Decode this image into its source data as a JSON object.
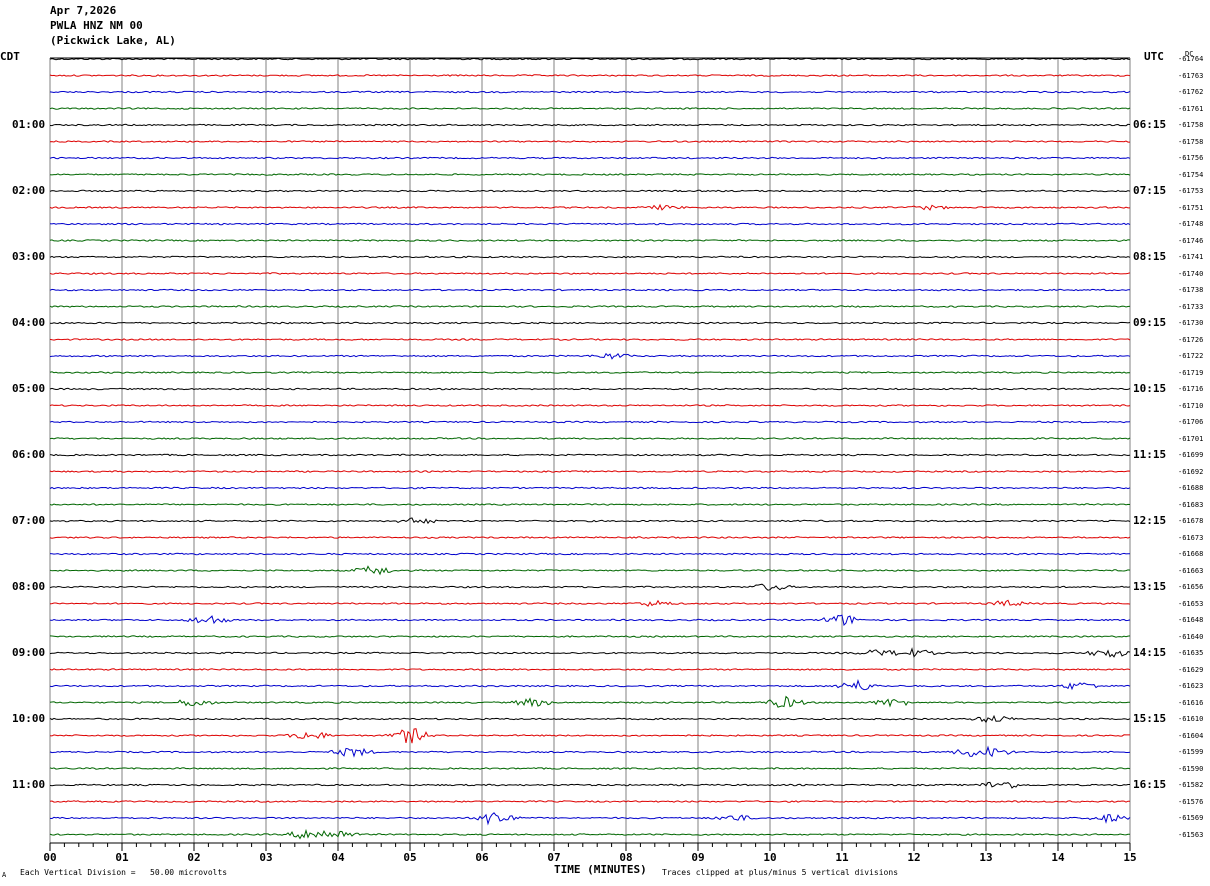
{
  "header": {
    "date": "Apr 7,2026",
    "station": "PWLA HNZ NM 00",
    "location": "(Pickwick Lake, AL)"
  },
  "left_timezone": "CDT",
  "right_timezone": "UTC",
  "dc_label": "DC",
  "footer": {
    "scale_note": "Each Vertical Division =   50.00 microvolts",
    "xlabel": "TIME (MINUTES)",
    "clip_note": "Traces clipped at plus/minus 5 vertical divisions",
    "corner_mark": "A"
  },
  "colors": {
    "trace_cycle": [
      "#000000",
      "#dd0000",
      "#0000cc",
      "#006600"
    ],
    "grid": "#808080",
    "background": "#ffffff"
  },
  "chart_data": {
    "type": "line",
    "title": "",
    "xlabel": "TIME (MINUTES)",
    "xlim": [
      0,
      15
    ],
    "x_ticks": [
      "00",
      "01",
      "02",
      "03",
      "04",
      "05",
      "06",
      "07",
      "08",
      "09",
      "10",
      "11",
      "12",
      "13",
      "14",
      "15"
    ],
    "rows_per_hour": 4,
    "trace_count": 48,
    "left_hour_labels": [
      "01:00",
      "02:00",
      "03:00",
      "04:00",
      "05:00",
      "06:00",
      "07:00",
      "08:00",
      "09:00",
      "10:00",
      "11:00"
    ],
    "right_hour_labels": [
      "06:15",
      "07:15",
      "08:15",
      "09:15",
      "10:15",
      "11:15",
      "12:15",
      "13:15",
      "14:15",
      "15:15",
      "16:15"
    ],
    "dc_offsets": [
      "-61764",
      "-61763",
      "-61762",
      "-61761",
      "-61758",
      "-61758",
      "-61756",
      "-61754",
      "-61753",
      "-61751",
      "-61748",
      "-61746",
      "-61741",
      "-61740",
      "-61738",
      "-61733",
      "-61730",
      "-61726",
      "-61722",
      "-61719",
      "-61716",
      "-61710",
      "-61706",
      "-61701",
      "-61699",
      "-61692",
      "-61688",
      "-61683",
      "-61678",
      "-61673",
      "-61668",
      "-61663",
      "-61656",
      "-61653",
      "-61648",
      "-61640",
      "-61635",
      "-61629",
      "-61623",
      "-61616",
      "-61610",
      "-61604",
      "-61599",
      "-61590",
      "-61582",
      "-61576",
      "-61569",
      "-61563"
    ],
    "events": [
      {
        "trace": 9,
        "minute": 8.5,
        "amp": 0.25
      },
      {
        "trace": 9,
        "minute": 12.2,
        "amp": 0.25
      },
      {
        "trace": 18,
        "minute": 7.8,
        "amp": 0.35
      },
      {
        "trace": 28,
        "minute": 5.1,
        "amp": 0.4
      },
      {
        "trace": 31,
        "minute": 4.5,
        "amp": 0.6
      },
      {
        "trace": 32,
        "minute": 10.0,
        "amp": 0.45
      },
      {
        "trace": 33,
        "minute": 8.4,
        "amp": 0.35
      },
      {
        "trace": 33,
        "minute": 13.3,
        "amp": 0.35
      },
      {
        "trace": 34,
        "minute": 2.2,
        "amp": 0.6
      },
      {
        "trace": 34,
        "minute": 11.0,
        "amp": 0.7
      },
      {
        "trace": 36,
        "minute": 11.5,
        "amp": 0.4
      },
      {
        "trace": 36,
        "minute": 12.0,
        "amp": 0.5
      },
      {
        "trace": 36,
        "minute": 14.7,
        "amp": 0.6
      },
      {
        "trace": 38,
        "minute": 11.2,
        "amp": 0.7
      },
      {
        "trace": 38,
        "minute": 14.3,
        "amp": 0.5
      },
      {
        "trace": 39,
        "minute": 2.0,
        "amp": 0.5
      },
      {
        "trace": 39,
        "minute": 6.7,
        "amp": 0.5
      },
      {
        "trace": 39,
        "minute": 10.2,
        "amp": 0.7
      },
      {
        "trace": 39,
        "minute": 11.7,
        "amp": 0.5
      },
      {
        "trace": 40,
        "minute": 13.1,
        "amp": 0.45
      },
      {
        "trace": 41,
        "minute": 3.6,
        "amp": 0.6
      },
      {
        "trace": 41,
        "minute": 5.0,
        "amp": 1.0
      },
      {
        "trace": 42,
        "minute": 4.2,
        "amp": 0.6
      },
      {
        "trace": 42,
        "minute": 12.8,
        "amp": 0.5
      },
      {
        "trace": 42,
        "minute": 13.1,
        "amp": 0.5
      },
      {
        "trace": 44,
        "minute": 13.2,
        "amp": 0.6
      },
      {
        "trace": 46,
        "minute": 6.2,
        "amp": 1.0
      },
      {
        "trace": 46,
        "minute": 9.5,
        "amp": 0.4
      },
      {
        "trace": 46,
        "minute": 14.7,
        "amp": 0.5
      },
      {
        "trace": 47,
        "minute": 3.6,
        "amp": 0.7
      },
      {
        "trace": 47,
        "minute": 4.0,
        "amp": 0.5
      }
    ]
  }
}
